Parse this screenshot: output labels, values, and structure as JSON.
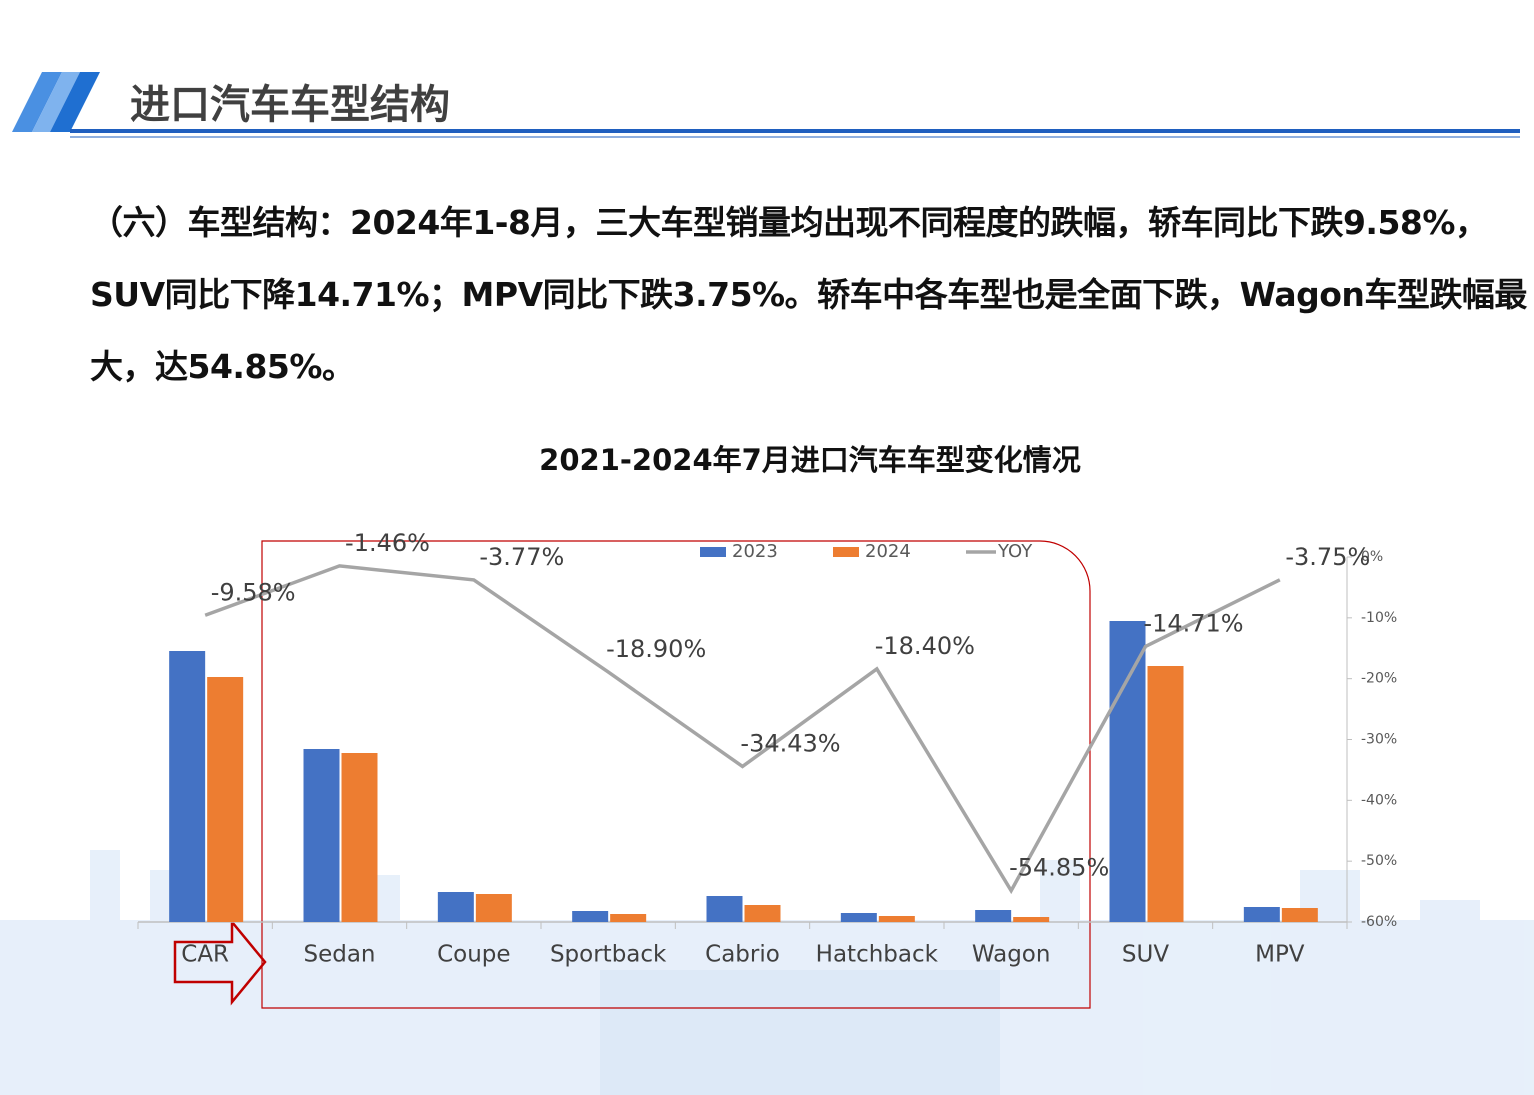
{
  "header": {
    "title": "进口汽车车型结构"
  },
  "body": {
    "lines": [
      "（六）车型结构：2024年1-8月，三大车型销量均出现不同程度的跌幅，轿车同比下跌9.58%，",
      "SUV同比下降14.71%；MPV同比下跌3.75%。轿车中各车型也是全面下跌，Wagon车型跌幅最",
      "大，达54.85%。"
    ]
  },
  "chart_data": {
    "type": "bar-line",
    "title": "2021-2024年7月进口汽车车型变化情况",
    "categories": [
      "CAR",
      "Sedan",
      "Coupe",
      "Sportback",
      "Cabrio",
      "Hatchback",
      "Wagon",
      "SUV",
      "MPV"
    ],
    "series": [
      {
        "name": "2023",
        "color": "#4472c4",
        "values": [
          271,
          173,
          30,
          11,
          26,
          9,
          12,
          301,
          15
        ]
      },
      {
        "name": "2024",
        "color": "#ed7d31",
        "values": [
          245,
          169,
          28,
          8,
          17,
          6,
          5,
          256,
          14
        ]
      },
      {
        "name": "YOY",
        "color": "#a5a5a5",
        "axis": "y2",
        "values": [
          -9.58,
          -1.46,
          -3.77,
          -18.9,
          -34.43,
          -18.4,
          -54.85,
          -14.71,
          -3.75
        ],
        "value_labels": [
          "-9.58%",
          "-1.46%",
          "-3.77%",
          "-18.90%",
          "-34.43%",
          "-18.40%",
          "-54.85%",
          "-14.71%",
          "-3.75%"
        ]
      }
    ],
    "y2lim": [
      -60,
      0
    ],
    "y2ticks": [
      {
        "value": 0,
        "label": "0%"
      },
      {
        "value": -10,
        "label": "-10%"
      },
      {
        "value": -20,
        "label": "-20%"
      },
      {
        "value": -30,
        "label": "-30%"
      },
      {
        "value": -40,
        "label": "-40%"
      },
      {
        "value": -50,
        "label": "-50%"
      },
      {
        "value": -60,
        "label": "-60%"
      }
    ]
  }
}
